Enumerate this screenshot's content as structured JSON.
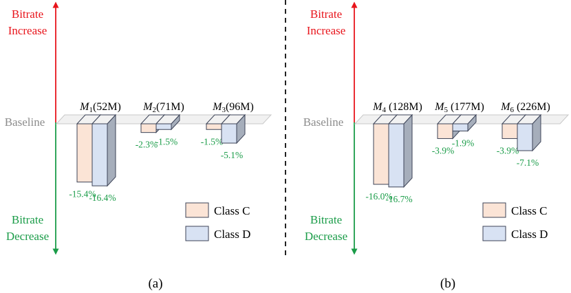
{
  "chart_data": [
    {
      "type": "bar",
      "panel_label": "(a)",
      "axis_top_label": [
        "Bitrate",
        "Increase"
      ],
      "axis_bottom_label": [
        "Bitrate",
        "Decrease"
      ],
      "baseline_label": "Baseline",
      "series": [
        {
          "name": "Class C",
          "values": [
            -15.4,
            -2.3,
            -1.5
          ]
        },
        {
          "name": "Class D",
          "values": [
            -16.4,
            -1.5,
            -5.1
          ]
        }
      ],
      "groups": [
        {
          "model": "M",
          "sub": "1",
          "size": "(52M)"
        },
        {
          "model": "M",
          "sub": "2",
          "size": "(71M)"
        },
        {
          "model": "M",
          "sub": "3",
          "size": "(96M)"
        }
      ],
      "value_labels": [
        [
          "-15.4%",
          "-2.3%",
          "-1.5%"
        ],
        [
          "-16.4%",
          "-1.5%",
          "-5.1%"
        ]
      ]
    },
    {
      "type": "bar",
      "panel_label": "(b)",
      "axis_top_label": [
        "Bitrate",
        "Increase"
      ],
      "axis_bottom_label": [
        "Bitrate",
        "Decrease"
      ],
      "baseline_label": "Baseline",
      "series": [
        {
          "name": "Class C",
          "values": [
            -16.0,
            -3.9,
            -3.9
          ]
        },
        {
          "name": "Class D",
          "values": [
            -16.7,
            -1.9,
            -7.1
          ]
        }
      ],
      "groups": [
        {
          "model": "M",
          "sub": "4",
          "size": " (128M)"
        },
        {
          "model": "M",
          "sub": "5",
          "size": " (177M)"
        },
        {
          "model": "M",
          "sub": "6",
          "size": " (226M)"
        }
      ],
      "value_labels": [
        [
          "-16.0%",
          "-3.9%",
          "-3.9%"
        ],
        [
          "-16.7%",
          "-1.9%",
          "-7.1%"
        ]
      ]
    }
  ],
  "colors": {
    "increase": "#e8141b",
    "decrease": "#1a9c48",
    "baseline_text": "#8c8c8c",
    "class_c_fill": "#fbe4d6",
    "class_d_fill": "#d8e2f3",
    "bar_top": "#f2f2f2",
    "bar_side": "#a6aebb",
    "bar_edge": "#3c4357",
    "value_label": "#1a9c48"
  }
}
